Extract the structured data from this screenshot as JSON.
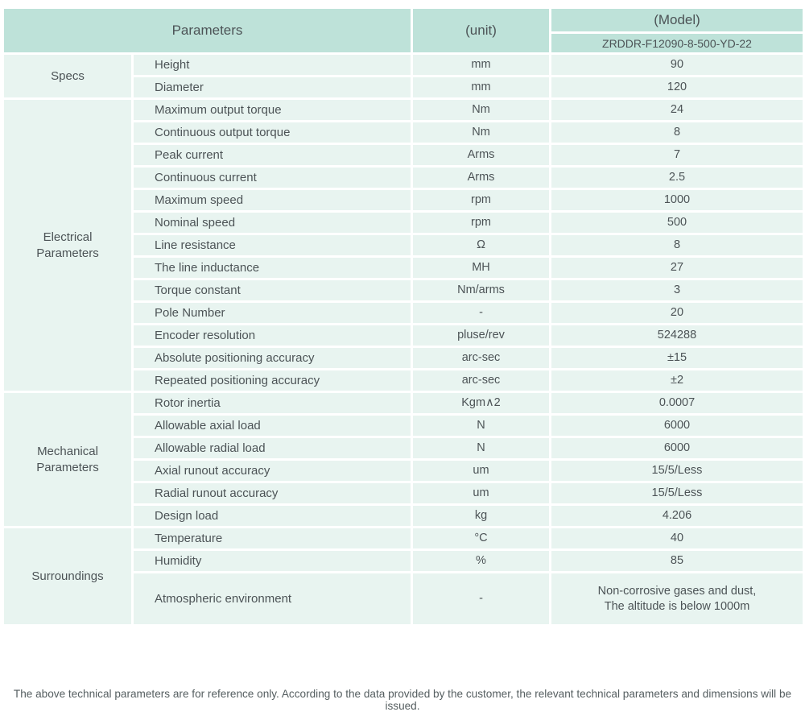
{
  "colors": {
    "header_bg": "#bee2d9",
    "cell_bg": "#e8f4f0",
    "text": "#4c5356"
  },
  "header": {
    "parameters": "Parameters",
    "unit": "(unit)",
    "model": "(Model)",
    "model_number": "ZRDDR-F12090-8-500-YD-22"
  },
  "groups": [
    {
      "category": "Specs",
      "rows": [
        {
          "param": "Height",
          "unit": "mm",
          "value": "90"
        },
        {
          "param": "Diameter",
          "unit": "mm",
          "value": "120"
        }
      ]
    },
    {
      "category": "Electrical\nParameters",
      "rows": [
        {
          "param": "Maximum output torque",
          "unit": "Nm",
          "value": "24"
        },
        {
          "param": "Continuous output torque",
          "unit": "Nm",
          "value": "8"
        },
        {
          "param": "Peak current",
          "unit": "Arms",
          "value": "7"
        },
        {
          "param": "Continuous current",
          "unit": "Arms",
          "value": "2.5"
        },
        {
          "param": "Maximum speed",
          "unit": "rpm",
          "value": "1000"
        },
        {
          "param": "Nominal speed",
          "unit": "rpm",
          "value": "500"
        },
        {
          "param": "Line resistance",
          "unit": "Ω",
          "value": "8"
        },
        {
          "param": "The line inductance",
          "unit": "MH",
          "value": "27"
        },
        {
          "param": "Torque constant",
          "unit": "Nm/arms",
          "value": "3"
        },
        {
          "param": "Pole Number",
          "unit": "-",
          "value": "20"
        },
        {
          "param": "Encoder resolution",
          "unit": "pluse/rev",
          "value": "524288"
        },
        {
          "param": "Absolute positioning accuracy",
          "unit": "arc-sec",
          "value": "±15"
        },
        {
          "param": "Repeated positioning accuracy",
          "unit": "arc-sec",
          "value": "±2"
        }
      ]
    },
    {
      "category": "Mechanical\nParameters",
      "rows": [
        {
          "param": "Rotor inertia",
          "unit": "Kgm∧2",
          "value": "0.0007"
        },
        {
          "param": "Allowable axial load",
          "unit": "N",
          "value": "6000"
        },
        {
          "param": "Allowable radial load",
          "unit": "N",
          "value": "6000"
        },
        {
          "param": "Axial runout accuracy",
          "unit": "um",
          "value": "15/5/Less"
        },
        {
          "param": "Radial runout accuracy",
          "unit": "um",
          "value": "15/5/Less"
        },
        {
          "param": "Design load",
          "unit": "kg",
          "value": "4.206"
        }
      ]
    },
    {
      "category": "Surroundings",
      "rows": [
        {
          "param": "Temperature",
          "unit": "°C",
          "value": "40"
        },
        {
          "param": "Humidity",
          "unit": "%",
          "value": "85"
        },
        {
          "param": "Atmospheric environment",
          "unit": "-",
          "value": "Non-corrosive gases and dust,\nThe altitude is below 1000m"
        }
      ]
    }
  ],
  "footer": {
    "note": "The above technical parameters are for reference only. According to the data provided by the customer, the relevant technical parameters and dimensions will be issued."
  }
}
